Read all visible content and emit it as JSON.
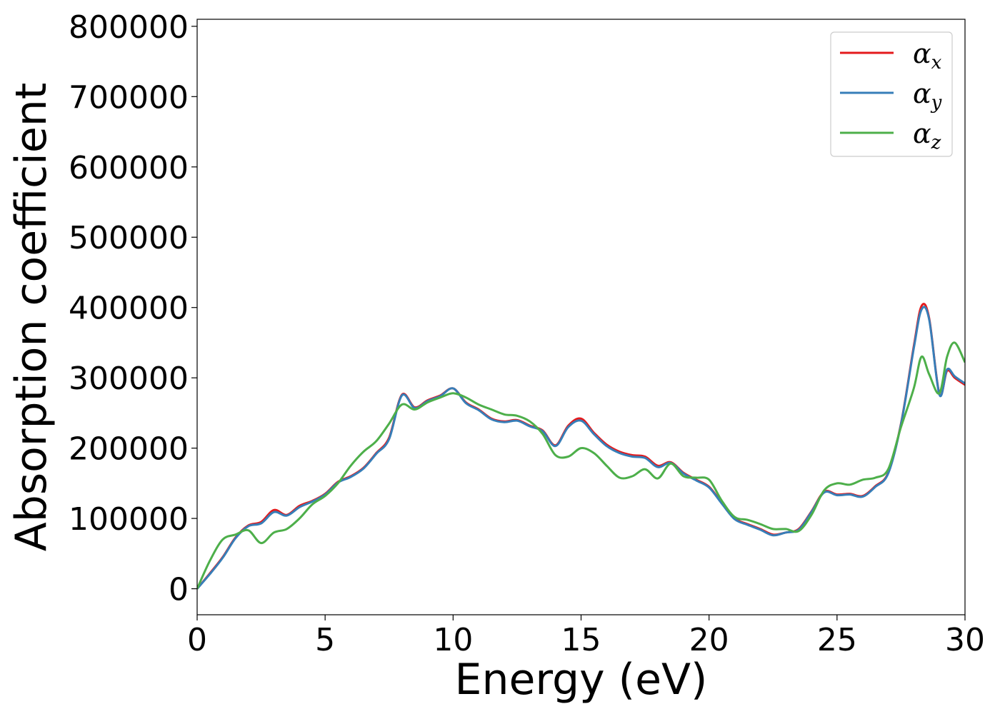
{
  "chart_data": {
    "type": "line",
    "xlabel": "Energy (eV)",
    "ylabel": "Absorption coefficient",
    "xlim": [
      0,
      30
    ],
    "ylim": [
      -37000,
      810000
    ],
    "xticks": [
      0,
      5,
      10,
      15,
      20,
      25,
      30
    ],
    "xtick_labels": [
      "0",
      "5",
      "10",
      "15",
      "20",
      "25",
      "30"
    ],
    "yticks": [
      0,
      100000,
      200000,
      300000,
      400000,
      500000,
      600000,
      700000,
      800000
    ],
    "ytick_labels": [
      "0",
      "100000",
      "200000",
      "300000",
      "400000",
      "500000",
      "600000",
      "700000",
      "800000"
    ],
    "grid": false,
    "legend_position": "top-right",
    "series": [
      {
        "name": "α_x",
        "legend_symbol": "α",
        "legend_subscript": "x",
        "color": "#e41a1c",
        "x": [
          0,
          0.5,
          1,
          1.5,
          2,
          2.5,
          3,
          3.5,
          4,
          4.5,
          5,
          5.5,
          6,
          6.5,
          7,
          7.5,
          8,
          8.5,
          9,
          9.5,
          10,
          10.5,
          11,
          11.5,
          12,
          12.5,
          13,
          13.5,
          14,
          14.5,
          15,
          15.5,
          16,
          16.5,
          17,
          17.5,
          18,
          18.5,
          19,
          19.5,
          20,
          20.5,
          21,
          21.5,
          22,
          22.5,
          23,
          23.5,
          24,
          24.5,
          25,
          25.5,
          26,
          26.5,
          27,
          27.5,
          28,
          28.3,
          28.6,
          29,
          29.3,
          29.6,
          30
        ],
        "y": [
          0,
          22000,
          45000,
          73000,
          90000,
          95000,
          112000,
          105000,
          118000,
          125000,
          135000,
          152000,
          160000,
          172000,
          193000,
          215000,
          276000,
          258000,
          268000,
          275000,
          285000,
          265000,
          255000,
          242000,
          238000,
          240000,
          232000,
          225000,
          204000,
          232000,
          242000,
          222000,
          205000,
          195000,
          190000,
          188000,
          175000,
          180000,
          165000,
          155000,
          145000,
          122000,
          100000,
          92000,
          85000,
          77000,
          80000,
          85000,
          110000,
          138000,
          134000,
          135000,
          132000,
          146000,
          165000,
          235000,
          345000,
          402000,
          385000,
          277000,
          310000,
          300000,
          290000
        ]
      },
      {
        "name": "α_y",
        "legend_symbol": "α",
        "legend_subscript": "y",
        "color": "#377eb8",
        "x": [
          0,
          0.5,
          1,
          1.5,
          2,
          2.5,
          3,
          3.5,
          4,
          4.5,
          5,
          5.5,
          6,
          6.5,
          7,
          7.5,
          8,
          8.5,
          9,
          9.5,
          10,
          10.5,
          11,
          11.5,
          12,
          12.5,
          13,
          13.5,
          14,
          14.5,
          15,
          15.5,
          16,
          16.5,
          17,
          17.5,
          18,
          18.5,
          19,
          19.5,
          20,
          20.5,
          21,
          21.5,
          22,
          22.5,
          23,
          23.5,
          24,
          24.5,
          25,
          25.5,
          26,
          26.5,
          27,
          27.5,
          28,
          28.3,
          28.6,
          29,
          29.3,
          29.6,
          30
        ],
        "y": [
          0,
          21000,
          44000,
          72000,
          89000,
          93000,
          109000,
          104000,
          116000,
          124000,
          134000,
          151000,
          159000,
          171000,
          192000,
          213000,
          275000,
          257000,
          267000,
          274000,
          285000,
          264000,
          254000,
          241000,
          237000,
          239000,
          231000,
          224000,
          203000,
          230000,
          239000,
          220000,
          203000,
          193000,
          188000,
          186000,
          173000,
          179000,
          164000,
          154000,
          144000,
          121000,
          99000,
          91000,
          84000,
          76000,
          80000,
          84000,
          109000,
          137000,
          133000,
          134000,
          131000,
          145000,
          164000,
          234000,
          342000,
          397000,
          383000,
          276000,
          312000,
          302000,
          292000
        ]
      },
      {
        "name": "α_z",
        "legend_symbol": "α",
        "legend_subscript": "z",
        "color": "#4daf4a",
        "x": [
          0,
          0.5,
          1,
          1.5,
          2,
          2.5,
          3,
          3.5,
          4,
          4.5,
          5,
          5.5,
          6,
          6.5,
          7,
          7.5,
          8,
          8.5,
          9,
          9.5,
          10,
          10.5,
          11,
          11.5,
          12,
          12.5,
          13,
          13.5,
          14,
          14.5,
          15,
          15.5,
          16,
          16.5,
          17,
          17.5,
          18,
          18.5,
          19,
          19.5,
          20,
          20.5,
          21,
          21.5,
          22,
          22.5,
          23,
          23.5,
          24,
          24.5,
          25,
          25.5,
          26,
          26.5,
          27,
          27.5,
          28,
          28.3,
          28.6,
          29,
          29.3,
          29.6,
          30
        ],
        "y": [
          0,
          40000,
          70000,
          77000,
          83000,
          65000,
          80000,
          85000,
          100000,
          120000,
          132000,
          150000,
          175000,
          195000,
          210000,
          235000,
          262000,
          255000,
          265000,
          272000,
          278000,
          272000,
          262000,
          255000,
          248000,
          246000,
          238000,
          220000,
          190000,
          188000,
          200000,
          193000,
          175000,
          158000,
          160000,
          170000,
          157000,
          178000,
          160000,
          158000,
          155000,
          125000,
          102000,
          98000,
          92000,
          85000,
          85000,
          82000,
          105000,
          140000,
          150000,
          148000,
          155000,
          158000,
          170000,
          230000,
          285000,
          330000,
          305000,
          278000,
          330000,
          350000,
          322000
        ]
      }
    ]
  }
}
